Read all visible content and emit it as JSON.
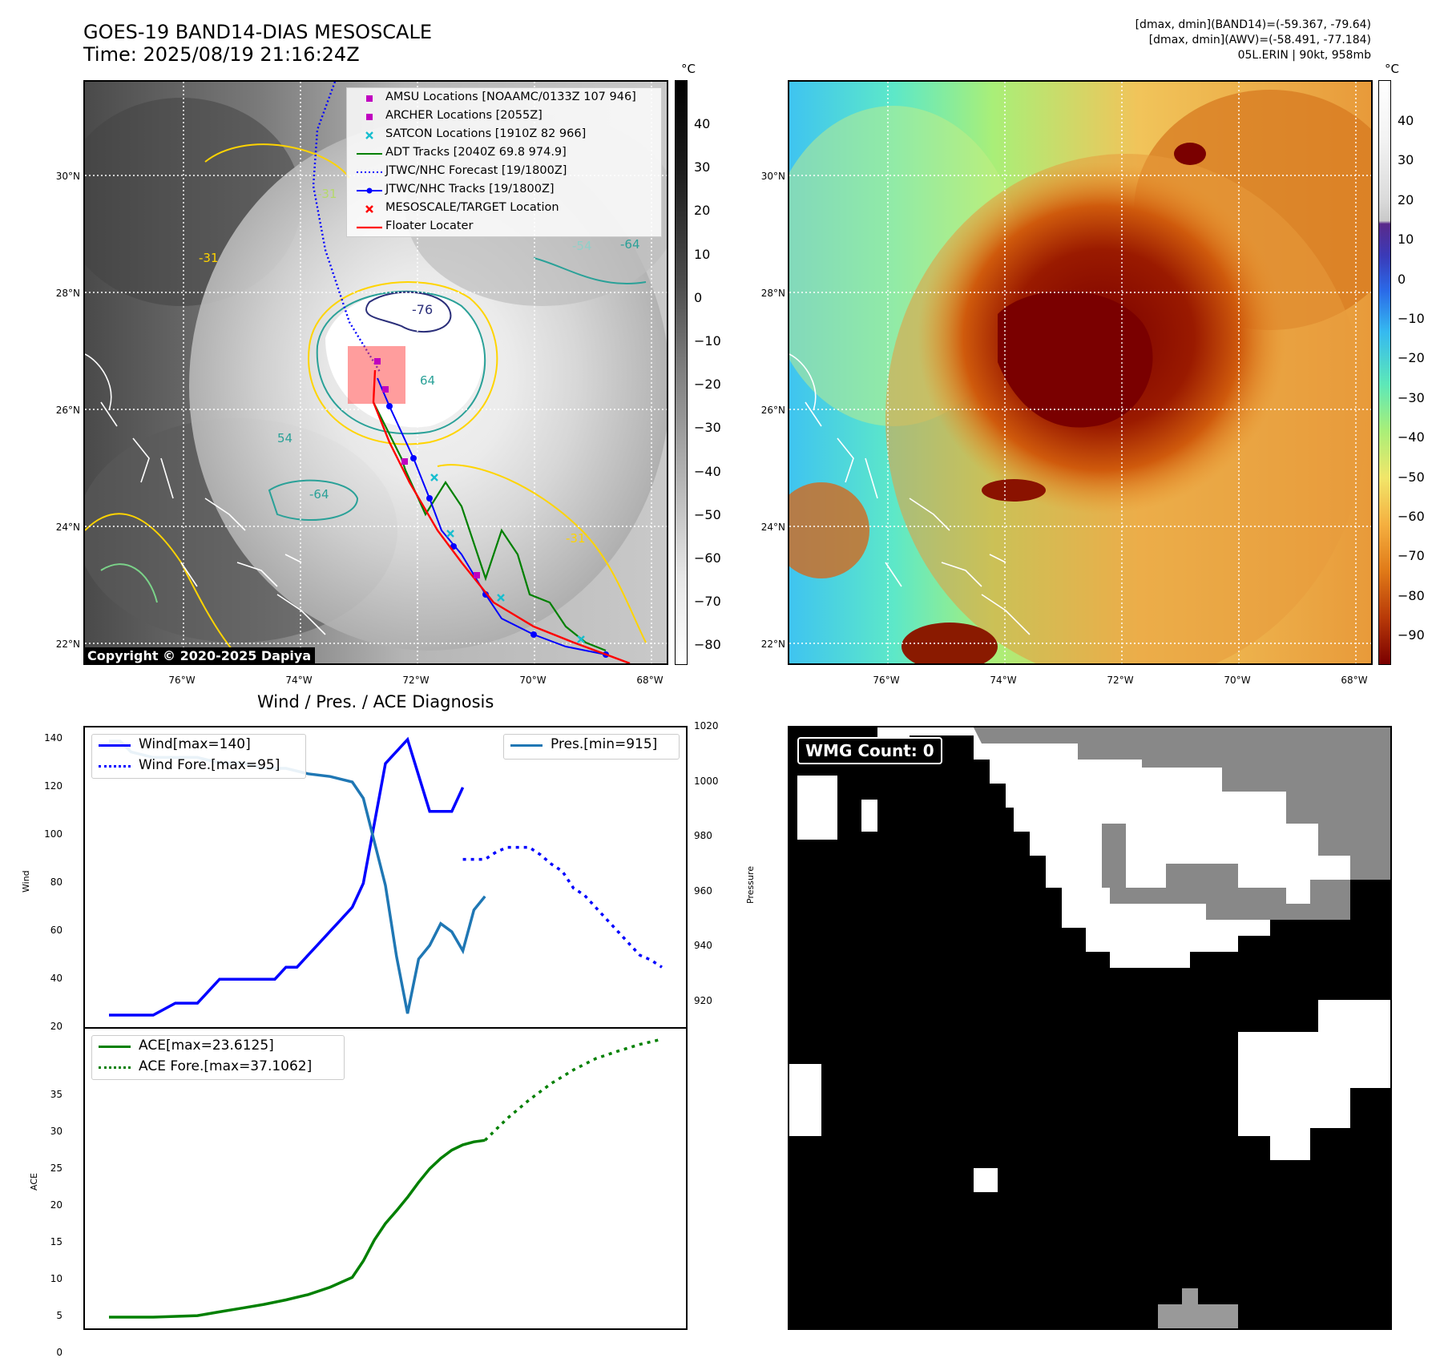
{
  "header": {
    "title_line1": "GOES-19 BAND14-DIAS MESOSCALE",
    "title_line2": "Time: 2025/08/19 21:16:24Z",
    "info_line1": "[dmax, dmin](BAND14)=(-59.367, -79.64)",
    "info_line2": "[dmax, dmin](AWV)=(-58.491, -77.184)",
    "info_line3": "05L.ERIN | 90kt, 958mb"
  },
  "maps": {
    "lat_labels": [
      "30°N",
      "28°N",
      "26°N",
      "24°N",
      "22°N"
    ],
    "lon_labels": [
      "76°W",
      "74°W",
      "72°W",
      "70°W",
      "68°W"
    ],
    "unit": "°C",
    "copyright": "Copyright © 2020-2025 Dapiya",
    "contour_labels": [
      "-76",
      "64",
      "-54",
      "-64",
      "54",
      "-31",
      "-31",
      "-64",
      "-31"
    ]
  },
  "ir_colorbar": {
    "ticks": [
      "40",
      "30",
      "20",
      "10",
      "0",
      "−10",
      "−20",
      "−30",
      "−40",
      "−50",
      "−60",
      "−70",
      "−80"
    ]
  },
  "awv_colorbar": {
    "ticks": [
      "40",
      "30",
      "20",
      "10",
      "0",
      "−10",
      "−20",
      "−30",
      "−40",
      "−50",
      "−60",
      "−70",
      "−80",
      "−90"
    ]
  },
  "legend": {
    "amsu": "AMSU Locations [NOAAMC/0133Z 107 946]",
    "archer": "ARCHER Locations [2055Z]",
    "satcon": "SATCON Locations [1910Z 82 966]",
    "adt": "ADT Tracks [2040Z 69.8 974.9]",
    "forecast": "JTWC/NHC Forecast [19/1800Z]",
    "tracks": "JTWC/NHC Tracks [19/1800Z]",
    "target": "MESOSCALE/TARGET Location",
    "floater": "Floater Locater",
    "colors": {
      "amsu": "#c000c0",
      "satcon": "#17becf",
      "adt": "#008000",
      "jtwc": "#0000ff",
      "target": "#ff0000"
    }
  },
  "diagnosis": {
    "title": "Wind / Pres. / ACE Diagnosis",
    "wind_ylabel": "Wind",
    "pres_ylabel": "Pressure",
    "ace_ylabel": "ACE",
    "wind_legend": "Wind[max=140]",
    "wind_fore_legend": "Wind Fore.[max=95]",
    "pres_legend": "Pres.[min=915]",
    "ace_legend": "ACE[max=23.6125]",
    "ace_fore_legend": "ACE Fore.[max=37.1062]",
    "wind_ticks": [
      "140",
      "120",
      "100",
      "80",
      "60",
      "40",
      "20"
    ],
    "pres_ticks": [
      "1020",
      "1000",
      "980",
      "960",
      "940",
      "920"
    ],
    "ace_ticks": [
      "35",
      "30",
      "25",
      "20",
      "15",
      "10",
      "5",
      "0"
    ]
  },
  "wmg": {
    "badge": "WMG Count: 0"
  },
  "chart_data": [
    {
      "type": "line",
      "title": "Wind / Pres. / ACE Diagnosis",
      "ylabel": "Wind",
      "ylim": [
        20,
        145
      ],
      "series": [
        {
          "name": "Wind[max=140]",
          "x": [
            0,
            4,
            8,
            12,
            16,
            20,
            24,
            28,
            30,
            32,
            34,
            36,
            38,
            40,
            42,
            44,
            46,
            50,
            54,
            58,
            62,
            64
          ],
          "values": [
            25,
            25,
            25,
            30,
            30,
            40,
            40,
            40,
            40,
            45,
            45,
            50,
            55,
            60,
            65,
            70,
            80,
            130,
            140,
            110,
            110,
            120
          ]
        },
        {
          "name": "Wind Fore.[max=95]",
          "x": [
            64,
            68,
            70,
            72,
            74,
            76,
            78,
            80,
            82,
            84,
            86,
            88,
            90,
            92,
            94,
            96,
            98,
            100
          ],
          "values": [
            90,
            90,
            93,
            95,
            95,
            95,
            92,
            88,
            85,
            78,
            75,
            70,
            65,
            60,
            55,
            50,
            48,
            45
          ]
        }
      ]
    },
    {
      "type": "line",
      "ylabel": "Pressure",
      "ylim": [
        910,
        1020
      ],
      "series": [
        {
          "name": "Pres.[min=915]",
          "x": [
            0,
            2,
            4,
            8,
            12,
            16,
            20,
            24,
            28,
            32,
            36,
            40,
            44,
            46,
            48,
            50,
            52,
            54,
            56,
            58,
            60,
            62,
            64,
            66,
            68
          ],
          "values": [
            1015,
            1015,
            1011,
            1009,
            1009,
            1009,
            1007,
            1007,
            1005,
            1005,
            1003,
            1002,
            1000,
            994,
            978,
            962,
            936,
            915,
            935,
            940,
            948,
            945,
            938,
            953,
            958
          ]
        }
      ]
    },
    {
      "type": "line",
      "ylabel": "ACE",
      "ylim": [
        -1.5,
        38.5
      ],
      "series": [
        {
          "name": "ACE[max=23.6125]",
          "x": [
            0,
            8,
            16,
            20,
            24,
            28,
            32,
            36,
            40,
            44,
            46,
            48,
            50,
            52,
            54,
            56,
            58,
            60,
            62,
            64,
            66,
            68
          ],
          "values": [
            0,
            0,
            0.2,
            0.7,
            1.2,
            1.7,
            2.3,
            3.0,
            4.0,
            5.3,
            7.5,
            10.3,
            12.5,
            14.2,
            16.0,
            18.0,
            19.8,
            21.2,
            22.3,
            23.0,
            23.4,
            23.6
          ]
        },
        {
          "name": "ACE Fore.[max=37.1062]",
          "x": [
            68,
            72,
            76,
            80,
            84,
            88,
            92,
            96,
            100
          ],
          "values": [
            23.6,
            26.5,
            29.0,
            31.2,
            33.0,
            34.5,
            35.5,
            36.4,
            37.1
          ]
        }
      ]
    }
  ]
}
